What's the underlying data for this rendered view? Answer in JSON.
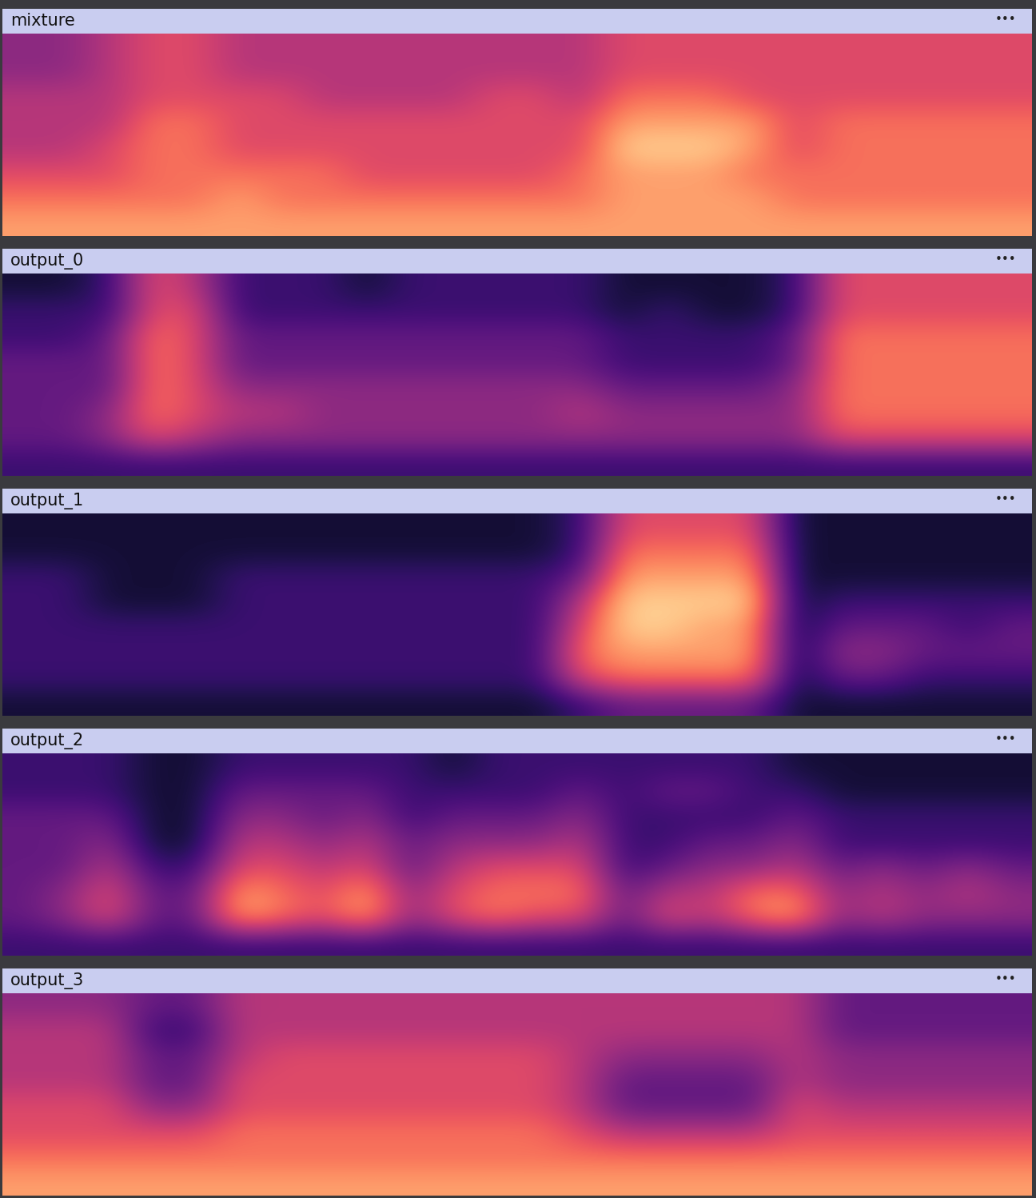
{
  "chart_data": [
    {
      "type": "heatmap",
      "title": "mixture",
      "annotations": [
        "•••"
      ],
      "tick_labels": false,
      "zlim": [
        0,
        10
      ],
      "cells": [
        [
          4,
          4,
          5,
          6,
          6,
          5,
          5,
          5,
          5,
          5,
          5,
          5,
          5,
          5,
          6,
          6,
          6,
          6,
          6,
          6,
          6,
          6,
          6,
          6
        ],
        [
          4,
          4,
          5,
          6,
          6,
          5,
          5,
          5,
          5,
          5,
          5,
          5,
          5,
          5,
          6,
          6,
          6,
          6,
          6,
          6,
          6,
          6,
          6,
          6
        ],
        [
          5,
          5,
          5,
          6,
          6,
          6,
          6,
          5,
          5,
          5,
          5,
          6,
          6,
          5,
          7,
          7,
          7,
          6,
          6,
          6,
          6,
          6,
          6,
          6
        ],
        [
          5,
          5,
          5,
          7,
          7,
          6,
          6,
          6,
          6,
          6,
          6,
          6,
          6,
          6,
          8,
          8,
          8,
          8,
          6,
          7,
          7,
          7,
          7,
          7
        ],
        [
          5,
          5,
          6,
          7,
          7,
          6,
          6,
          6,
          6,
          6,
          6,
          6,
          6,
          6,
          9,
          9,
          9,
          8,
          6,
          7,
          7,
          7,
          7,
          7
        ],
        [
          6,
          6,
          6,
          7,
          7,
          7,
          7,
          7,
          6,
          6,
          6,
          6,
          6,
          7,
          8,
          8,
          8,
          7,
          7,
          7,
          7,
          7,
          7,
          7
        ],
        [
          7,
          7,
          7,
          7,
          7,
          8,
          7,
          7,
          7,
          7,
          7,
          7,
          7,
          7,
          8,
          8,
          8,
          8,
          7,
          7,
          7,
          7,
          7,
          7
        ],
        [
          8,
          8,
          8,
          8,
          8,
          8,
          8,
          8,
          8,
          8,
          8,
          8,
          8,
          8,
          8,
          8,
          8,
          8,
          8,
          8,
          8,
          8,
          8,
          8
        ]
      ]
    },
    {
      "type": "heatmap",
      "title": "output_0",
      "annotations": [
        "•••"
      ],
      "tick_labels": false,
      "zlim": [
        0,
        10
      ],
      "cells": [
        [
          1,
          1,
          2,
          6,
          5,
          2,
          2,
          2,
          1,
          2,
          2,
          2,
          2,
          2,
          1,
          1,
          1,
          1,
          2,
          6,
          6,
          6,
          6,
          6
        ],
        [
          2,
          2,
          2,
          6,
          6,
          2,
          2,
          2,
          2,
          2,
          2,
          2,
          2,
          2,
          1,
          2,
          1,
          1,
          2,
          6,
          6,
          6,
          6,
          6
        ],
        [
          2,
          2,
          3,
          7,
          6,
          3,
          3,
          3,
          3,
          3,
          3,
          3,
          3,
          3,
          2,
          2,
          2,
          2,
          3,
          7,
          7,
          7,
          7,
          7
        ],
        [
          3,
          3,
          3,
          7,
          6,
          3,
          3,
          3,
          3,
          3,
          3,
          3,
          3,
          3,
          2,
          2,
          2,
          2,
          3,
          7,
          7,
          7,
          7,
          7
        ],
        [
          3,
          3,
          3,
          7,
          6,
          4,
          4,
          4,
          4,
          4,
          4,
          4,
          4,
          4,
          3,
          3,
          3,
          3,
          4,
          7,
          7,
          7,
          7,
          7
        ],
        [
          3,
          3,
          4,
          7,
          6,
          5,
          5,
          4,
          4,
          4,
          4,
          4,
          4,
          5,
          4,
          4,
          4,
          4,
          4,
          7,
          7,
          7,
          7,
          7
        ],
        [
          3,
          3,
          4,
          6,
          5,
          4,
          4,
          4,
          4,
          4,
          4,
          4,
          4,
          4,
          4,
          4,
          4,
          4,
          4,
          6,
          6,
          6,
          6,
          6
        ],
        [
          2,
          2,
          2,
          2,
          2,
          2,
          2,
          2,
          2,
          2,
          2,
          2,
          2,
          2,
          2,
          2,
          2,
          2,
          2,
          2,
          2,
          2,
          2,
          2
        ]
      ]
    },
    {
      "type": "heatmap",
      "title": "output_1",
      "annotations": [
        "•••"
      ],
      "tick_labels": false,
      "zlim": [
        0,
        10
      ],
      "cells": [
        [
          1,
          1,
          1,
          1,
          1,
          1,
          1,
          1,
          1,
          1,
          1,
          1,
          1,
          2,
          6,
          6,
          6,
          6,
          1,
          1,
          1,
          1,
          1,
          1
        ],
        [
          1,
          1,
          1,
          1,
          1,
          1,
          1,
          1,
          1,
          1,
          1,
          1,
          1,
          2,
          7,
          7,
          7,
          7,
          1,
          1,
          1,
          1,
          1,
          1
        ],
        [
          2,
          2,
          1,
          1,
          1,
          2,
          2,
          2,
          2,
          2,
          2,
          2,
          2,
          3,
          8,
          8,
          8,
          8,
          1,
          1,
          1,
          1,
          1,
          1
        ],
        [
          2,
          2,
          1,
          1,
          1,
          2,
          2,
          2,
          2,
          2,
          2,
          2,
          2,
          5,
          9,
          9,
          9,
          9,
          1,
          2,
          2,
          2,
          2,
          2
        ],
        [
          2,
          2,
          2,
          2,
          2,
          2,
          2,
          2,
          2,
          2,
          2,
          2,
          2,
          6,
          9,
          9,
          8,
          8,
          1,
          3,
          3,
          3,
          2,
          3
        ],
        [
          2,
          2,
          2,
          2,
          2,
          2,
          2,
          2,
          2,
          2,
          2,
          2,
          2,
          7,
          8,
          8,
          8,
          8,
          1,
          4,
          4,
          3,
          3,
          3
        ],
        [
          2,
          2,
          2,
          2,
          2,
          2,
          2,
          2,
          2,
          2,
          2,
          2,
          2,
          6,
          7,
          7,
          7,
          7,
          1,
          3,
          3,
          2,
          2,
          2
        ],
        [
          1,
          1,
          1,
          1,
          1,
          1,
          1,
          1,
          1,
          1,
          1,
          1,
          1,
          2,
          3,
          3,
          3,
          3,
          1,
          1,
          1,
          1,
          1,
          1
        ]
      ]
    },
    {
      "type": "heatmap",
      "title": "output_2",
      "annotations": [
        "•••"
      ],
      "tick_labels": false,
      "zlim": [
        0,
        10
      ],
      "cells": [
        [
          2,
          2,
          2,
          1,
          1,
          2,
          2,
          2,
          2,
          2,
          1,
          2,
          2,
          2,
          2,
          2,
          2,
          2,
          1,
          1,
          1,
          1,
          1,
          1
        ],
        [
          2,
          2,
          2,
          1,
          1,
          3,
          3,
          3,
          3,
          2,
          2,
          2,
          2,
          3,
          2,
          3,
          3,
          2,
          2,
          1,
          1,
          1,
          1,
          1
        ],
        [
          3,
          3,
          3,
          1,
          1,
          4,
          4,
          3,
          4,
          2,
          3,
          3,
          3,
          4,
          2,
          2,
          2,
          2,
          3,
          2,
          2,
          2,
          2,
          2
        ],
        [
          3,
          3,
          4,
          1,
          1,
          5,
          5,
          4,
          5,
          3,
          4,
          4,
          4,
          5,
          2,
          2,
          3,
          3,
          4,
          2,
          2,
          2,
          2,
          2
        ],
        [
          3,
          3,
          5,
          2,
          2,
          6,
          6,
          5,
          6,
          3,
          5,
          6,
          6,
          6,
          2,
          3,
          4,
          4,
          5,
          3,
          4,
          3,
          4,
          3
        ],
        [
          3,
          4,
          6,
          3,
          3,
          8,
          7,
          6,
          8,
          4,
          6,
          7,
          7,
          7,
          3,
          5,
          5,
          7,
          7,
          4,
          5,
          4,
          5,
          4
        ],
        [
          3,
          4,
          6,
          3,
          3,
          8,
          7,
          6,
          8,
          4,
          6,
          7,
          6,
          6,
          3,
          6,
          5,
          7,
          8,
          4,
          5,
          4,
          4,
          4
        ],
        [
          2,
          2,
          2,
          2,
          2,
          2,
          2,
          2,
          2,
          2,
          2,
          2,
          2,
          2,
          2,
          2,
          2,
          2,
          2,
          2,
          2,
          2,
          2,
          2
        ]
      ]
    },
    {
      "type": "heatmap",
      "title": "output_3",
      "annotations": [
        "•••"
      ],
      "tick_labels": false,
      "zlim": [
        0,
        10
      ],
      "cells": [
        [
          4,
          4,
          4,
          3,
          3,
          5,
          5,
          5,
          5,
          5,
          5,
          5,
          5,
          5,
          5,
          5,
          5,
          5,
          5,
          3,
          3,
          3,
          3,
          3
        ],
        [
          5,
          5,
          5,
          2,
          2,
          5,
          5,
          5,
          5,
          5,
          5,
          5,
          5,
          5,
          5,
          5,
          5,
          5,
          5,
          3,
          3,
          3,
          3,
          3
        ],
        [
          5,
          5,
          5,
          3,
          3,
          5,
          6,
          6,
          6,
          6,
          6,
          6,
          6,
          5,
          4,
          4,
          4,
          4,
          5,
          4,
          4,
          4,
          4,
          4
        ],
        [
          5,
          5,
          5,
          3,
          3,
          6,
          6,
          6,
          6,
          6,
          6,
          6,
          6,
          5,
          3,
          3,
          3,
          3,
          5,
          4,
          4,
          4,
          4,
          4
        ],
        [
          6,
          6,
          6,
          4,
          4,
          6,
          6,
          6,
          6,
          6,
          6,
          6,
          6,
          5,
          3,
          3,
          3,
          3,
          6,
          5,
          5,
          5,
          5,
          5
        ],
        [
          6,
          6,
          6,
          6,
          6,
          7,
          7,
          7,
          7,
          7,
          7,
          7,
          7,
          6,
          5,
          5,
          5,
          5,
          6,
          6,
          6,
          6,
          6,
          6
        ],
        [
          7,
          7,
          7,
          7,
          7,
          7,
          7,
          7,
          7,
          7,
          7,
          7,
          7,
          7,
          7,
          7,
          7,
          7,
          7,
          7,
          7,
          7,
          7,
          7
        ],
        [
          8,
          8,
          8,
          8,
          8,
          8,
          8,
          8,
          8,
          8,
          8,
          8,
          8,
          8,
          8,
          8,
          8,
          8,
          8,
          8,
          8,
          8,
          8,
          8
        ]
      ]
    }
  ]
}
